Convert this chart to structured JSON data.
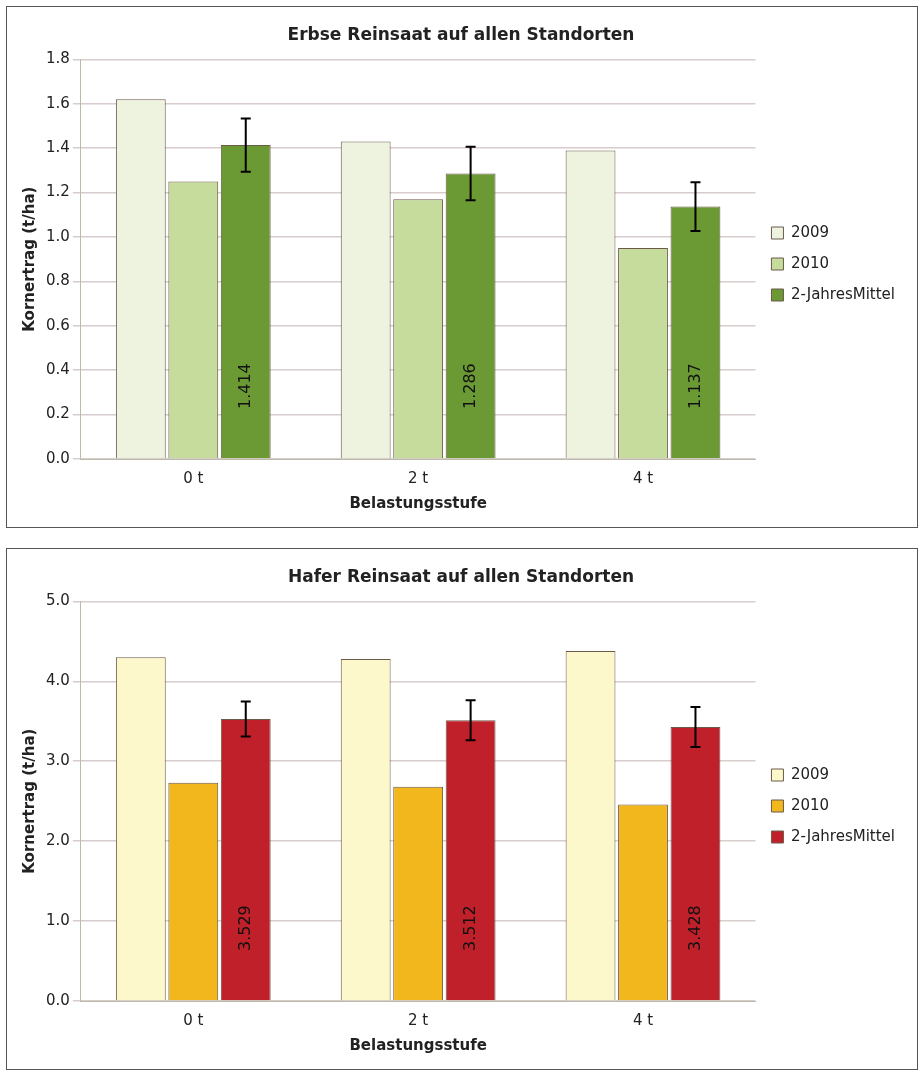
{
  "chart_data": [
    {
      "type": "bar",
      "title": "Erbse Reinsaat auf allen Standorten",
      "xlabel": "Belastungsstufe",
      "ylabel": "Kornertrag (t/ha)",
      "categories": [
        "0 t",
        "2 t",
        "4 t"
      ],
      "ylim": [
        0,
        1.8
      ],
      "yticks": [
        {
          "value": 0,
          "label": "0.0"
        },
        {
          "value": 0.2,
          "label": "0.2"
        },
        {
          "value": 0.4,
          "label": "0.4"
        },
        {
          "value": 0.6,
          "label": "0.6"
        },
        {
          "value": 0.8,
          "label": "0.8"
        },
        {
          "value": 1.0,
          "label": "1.0"
        },
        {
          "value": 1.2,
          "label": "1.2"
        },
        {
          "value": 1.4,
          "label": "1.4"
        },
        {
          "value": 1.6,
          "label": "1.6"
        },
        {
          "value": 1.8,
          "label": "1.8"
        }
      ],
      "grid": "y",
      "legend": "right",
      "series": [
        {
          "name": "2009",
          "color": "#eef3e0",
          "values": [
            1.62,
            1.43,
            1.39
          ]
        },
        {
          "name": "2010",
          "color": "#c5dc9c",
          "values": [
            1.25,
            1.17,
            0.95
          ]
        },
        {
          "name": "2-JahresMittel",
          "color": "#6b9a35",
          "values": [
            1.414,
            1.286,
            1.137
          ],
          "errors": [
            0.12,
            0.12,
            0.11
          ],
          "value_labels": [
            "1.414",
            "1.286",
            "1.137"
          ]
        }
      ]
    },
    {
      "type": "bar",
      "title": "Hafer Reinsaat auf allen Standorten",
      "xlabel": "Belastungsstufe",
      "ylabel": "Kornertrag (t/ha)",
      "categories": [
        "0 t",
        "2 t",
        "4 t"
      ],
      "ylim": [
        0,
        5
      ],
      "yticks": [
        {
          "value": 0,
          "label": "0.0"
        },
        {
          "value": 1,
          "label": "1.0"
        },
        {
          "value": 2,
          "label": "2.0"
        },
        {
          "value": 3,
          "label": "3.0"
        },
        {
          "value": 4,
          "label": "4.0"
        },
        {
          "value": 5,
          "label": "5.0"
        }
      ],
      "grid": "y",
      "legend": "right",
      "series": [
        {
          "name": "2009",
          "color": "#fdf8cc",
          "values": [
            4.3,
            4.28,
            4.38
          ]
        },
        {
          "name": "2010",
          "color": "#f2b71c",
          "values": [
            2.73,
            2.68,
            2.46
          ]
        },
        {
          "name": "2-JahresMittel",
          "color": "#c0202a",
          "values": [
            3.529,
            3.512,
            3.428
          ],
          "errors": [
            0.22,
            0.25,
            0.25
          ],
          "value_labels": [
            "3.529",
            "3.512",
            "3.428"
          ]
        }
      ]
    }
  ]
}
